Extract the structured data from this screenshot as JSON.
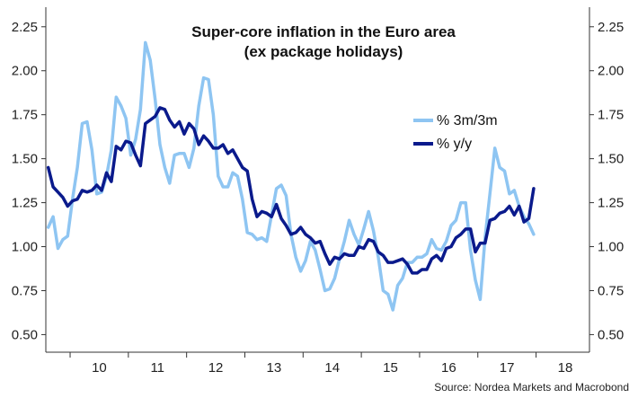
{
  "chart_data": {
    "type": "line",
    "title": [
      "Super-core inflation in the Euro area",
      "(ex package holidays)"
    ],
    "source": "Source: Nordea Markets and Macrobond",
    "y_ticks": [
      "0.50",
      "0.75",
      "1.00",
      "1.25",
      "1.50",
      "1.75",
      "2.00",
      "2.25"
    ],
    "y_tick_values": [
      0.5,
      0.75,
      1.0,
      1.25,
      1.5,
      1.75,
      2.0,
      2.25
    ],
    "ylim": [
      0.4,
      2.3
    ],
    "xlim": [
      2009.583,
      2018.917
    ],
    "x_ticks": [
      "10",
      "11",
      "12",
      "13",
      "14",
      "15",
      "16",
      "17",
      "18"
    ],
    "x_tick_values": [
      2010.5,
      2011.5,
      2012.5,
      2013.5,
      2014.5,
      2015.5,
      2016.5,
      2017.5,
      2018.5
    ],
    "x_boundaries": [
      2010,
      2011,
      2012,
      2013,
      2014,
      2015,
      2016,
      2017,
      2018
    ],
    "grid": false,
    "legend_position": "top-right",
    "colors": {
      "3m": "#8ec5f2",
      "yy": "#0a1a8c"
    },
    "series": [
      {
        "name": "% 3m/3m",
        "color_key": "3m",
        "start": 2009.625,
        "step": 0.0833333,
        "values": [
          1.11,
          1.17,
          0.99,
          1.04,
          1.06,
          1.27,
          1.45,
          1.7,
          1.71,
          1.55,
          1.3,
          1.31,
          1.4,
          1.55,
          1.85,
          1.8,
          1.73,
          1.52,
          1.61,
          1.78,
          2.16,
          2.06,
          1.84,
          1.58,
          1.45,
          1.36,
          1.52,
          1.53,
          1.53,
          1.45,
          1.56,
          1.8,
          1.96,
          1.95,
          1.75,
          1.4,
          1.34,
          1.34,
          1.42,
          1.4,
          1.27,
          1.08,
          1.07,
          1.04,
          1.05,
          1.03,
          1.18,
          1.33,
          1.35,
          1.29,
          1.07,
          0.94,
          0.86,
          0.92,
          1.03,
          0.98,
          0.87,
          0.75,
          0.76,
          0.82,
          0.93,
          1.03,
          1.15,
          1.07,
          1.01,
          1.1,
          1.2,
          1.09,
          0.94,
          0.75,
          0.73,
          0.64,
          0.78,
          0.82,
          0.91,
          0.91,
          0.94,
          0.94,
          0.96,
          1.04,
          0.99,
          0.98,
          1.03,
          1.12,
          1.15,
          1.25,
          1.25,
          0.98,
          0.81,
          0.7,
          1.05,
          1.3,
          1.56,
          1.45,
          1.43,
          1.3,
          1.32,
          1.23,
          1.17,
          1.13,
          1.07
        ]
      },
      {
        "name": "% y/y",
        "color_key": "yy",
        "start": 2009.625,
        "step": 0.0833333,
        "values": [
          1.45,
          1.34,
          1.31,
          1.28,
          1.23,
          1.26,
          1.27,
          1.32,
          1.31,
          1.32,
          1.35,
          1.32,
          1.42,
          1.37,
          1.57,
          1.55,
          1.6,
          1.59,
          1.52,
          1.46,
          1.7,
          1.72,
          1.74,
          1.79,
          1.78,
          1.72,
          1.68,
          1.71,
          1.64,
          1.7,
          1.67,
          1.58,
          1.63,
          1.6,
          1.56,
          1.56,
          1.58,
          1.53,
          1.55,
          1.5,
          1.45,
          1.43,
          1.27,
          1.17,
          1.2,
          1.19,
          1.17,
          1.24,
          1.16,
          1.12,
          1.07,
          1.08,
          1.11,
          1.07,
          1.05,
          1.02,
          1.03,
          0.96,
          0.9,
          0.94,
          0.93,
          0.96,
          0.95,
          0.95,
          1.0,
          0.99,
          1.04,
          1.03,
          0.97,
          0.95,
          0.91,
          0.91,
          0.92,
          0.93,
          0.9,
          0.85,
          0.85,
          0.87,
          0.87,
          0.93,
          0.95,
          0.92,
          0.99,
          1.0,
          1.05,
          1.07,
          1.1,
          1.1,
          0.97,
          1.02,
          1.02,
          1.15,
          1.16,
          1.19,
          1.2,
          1.23,
          1.18,
          1.23,
          1.14,
          1.16,
          1.33
        ]
      }
    ]
  }
}
